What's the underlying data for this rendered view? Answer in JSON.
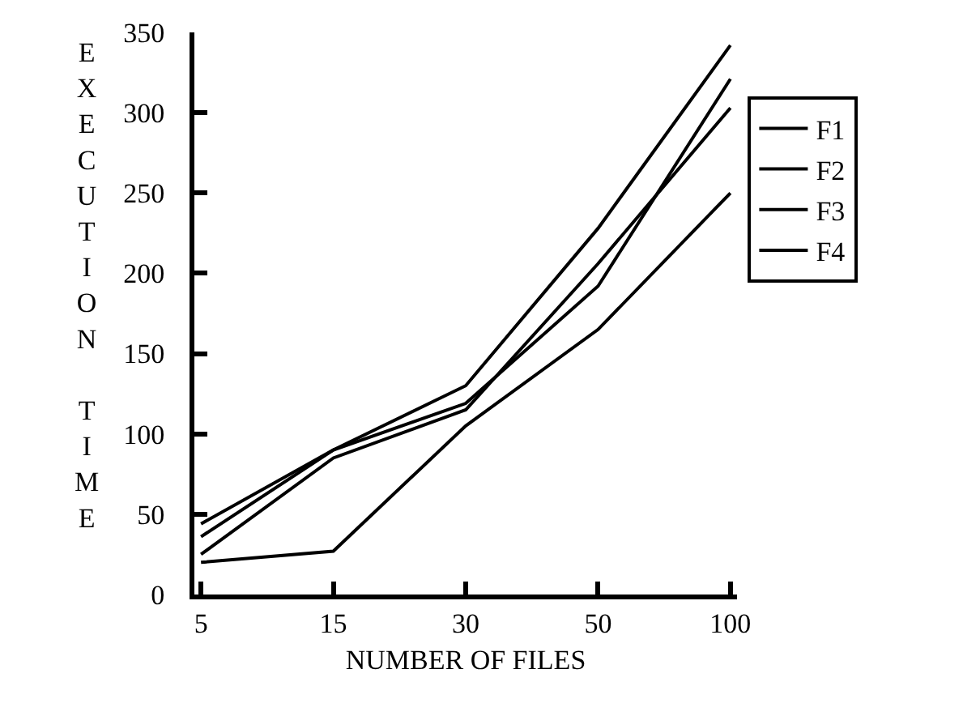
{
  "chart_data": {
    "type": "line",
    "xlabel": "NUMBER OF FILES",
    "ylabel": "EXECUTION TIME",
    "categories": [
      "5",
      "15",
      "30",
      "50",
      "100"
    ],
    "series": [
      {
        "name": "F1",
        "color": "#000000",
        "values": [
          44,
          90,
          130,
          228,
          342
        ]
      },
      {
        "name": "F2",
        "color": "#000000",
        "values": [
          36,
          90,
          119,
          192,
          321
        ]
      },
      {
        "name": "F3",
        "color": "#000000",
        "values": [
          25,
          85,
          115,
          206,
          303
        ]
      },
      {
        "name": "F4",
        "color": "#000000",
        "values": [
          20,
          27,
          105,
          165,
          250
        ]
      }
    ],
    "ylim": [
      0,
      350
    ],
    "yticks": [
      0,
      50,
      100,
      150,
      200,
      250,
      300,
      350
    ],
    "grid": false,
    "legend": "right",
    "marker": "none",
    "line_style": "solid"
  }
}
